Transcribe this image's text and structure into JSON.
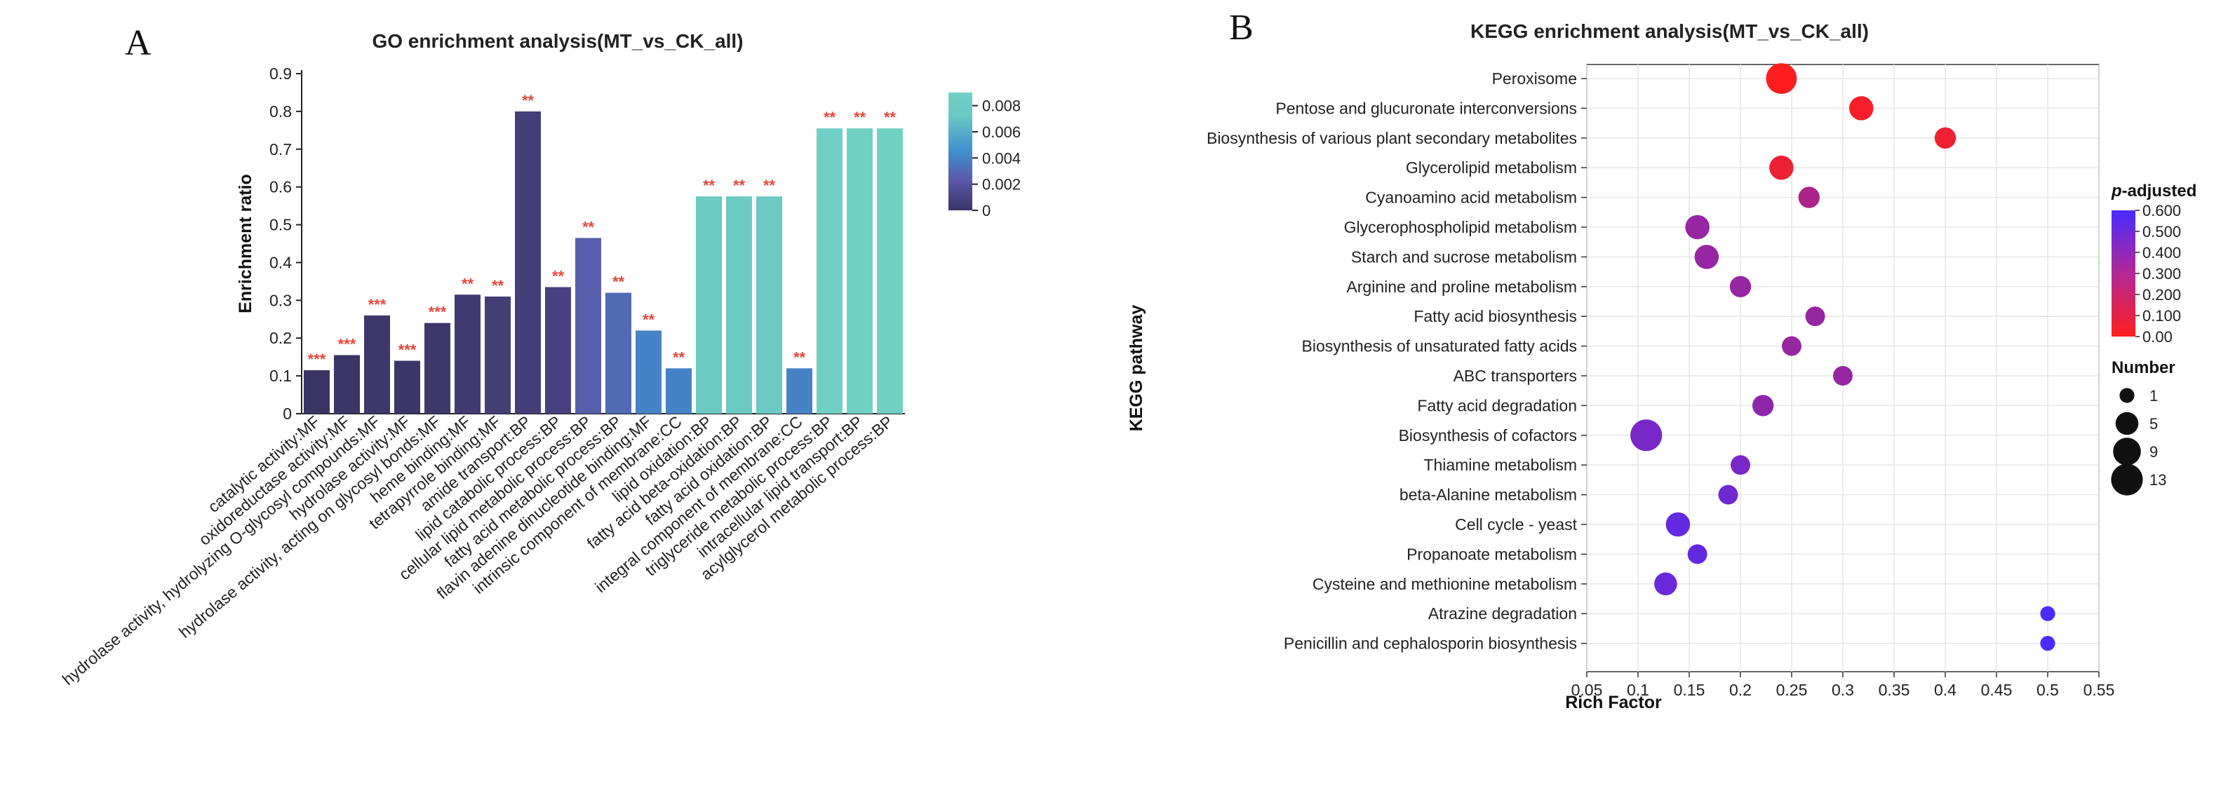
{
  "panels": {
    "a": "A",
    "b": "B"
  },
  "chart_data": [
    {
      "type": "bar",
      "title": "GO enrichment analysis(MT_vs_CK_all)",
      "xlabel": "",
      "ylabel": "Enrichment ratio",
      "ylim": [
        0,
        0.9
      ],
      "yticks": [
        "0",
        "0.1",
        "0.2",
        "0.3",
        "0.4",
        "0.5",
        "0.6",
        "0.7",
        "0.8",
        "0.9"
      ],
      "grid": false,
      "categories": [
        "catalytic activity:MF",
        "oxidoreductase activity:MF",
        "hydrolase activity, hydrolyzing O-glycosyl compounds:MF",
        "hydrolase activity:MF",
        "hydrolase activity, acting on glycosyl bonds:MF",
        "heme binding:MF",
        "tetrapyrrole binding:MF",
        "amide transport:BP",
        "lipid catabolic process:BP",
        "cellular lipid metabolic process:BP",
        "fatty acid metabolic process:BP",
        "flavin adenine dinucleotide binding:MF",
        "intrinsic component of membrane:CC",
        "lipid oxidation:BP",
        "fatty acid beta-oxidation:BP",
        "fatty acid oxidation:BP",
        "integral component of membrane:CC",
        "triglyceride metabolic process:BP",
        "intracellular lipid transport:BP",
        "acylglycerol metabolic process:BP"
      ],
      "values": [
        0.115,
        0.155,
        0.26,
        0.14,
        0.24,
        0.315,
        0.31,
        0.8,
        0.335,
        0.465,
        0.32,
        0.22,
        0.12,
        0.575,
        0.575,
        0.575,
        0.12,
        0.755,
        0.755,
        0.755
      ],
      "significance": [
        "***",
        "***",
        "***",
        "***",
        "***",
        "**",
        "**",
        "**",
        "**",
        "**",
        "**",
        "**",
        "**",
        "**",
        "**",
        "**",
        "**",
        "**",
        "**",
        "**"
      ],
      "color_values": [
        0,
        0.0001,
        0.0002,
        0.0001,
        0.0002,
        0.0004,
        0.0006,
        0.0007,
        0.0009,
        0.0025,
        0.003,
        0.004,
        0.004,
        0.007,
        0.007,
        0.007,
        0.004,
        0.009,
        0.009,
        0.009
      ],
      "colorbar": {
        "range": [
          0,
          0.009
        ],
        "ticks": [
          "0.008",
          "0.006",
          "0.004",
          "0.002",
          "0"
        ],
        "colors": [
          "#3a3464",
          "#5a58a8",
          "#3f8fcf",
          "#6ac9c4",
          "#70d0c3"
        ]
      }
    },
    {
      "type": "scatter",
      "title": "KEGG enrichment analysis(MT_vs_CK_all)",
      "xlabel": "Rich Factor",
      "ylabel": "KEGG pathway",
      "xlim": [
        0.05,
        0.55
      ],
      "xticks": [
        "0.05",
        "0.1",
        "0.15",
        "0.2",
        "0.25",
        "0.3",
        "0.35",
        "0.4",
        "0.45",
        "0.5",
        "0.55"
      ],
      "grid": true,
      "legend_position": "right",
      "categories": [
        "Peroxisome",
        "Pentose and glucuronate interconversions",
        "Biosynthesis of various plant secondary metabolites",
        "Glycerolipid metabolism",
        "Cyanoamino acid metabolism",
        "Glycerophospholipid metabolism",
        "Starch and sucrose metabolism",
        "Arginine and proline metabolism",
        "Fatty acid biosynthesis",
        "Biosynthesis of unsaturated fatty acids",
        "ABC transporters",
        "Fatty acid degradation",
        "Biosynthesis of cofactors",
        "Thiamine metabolism",
        "beta-Alanine metabolism",
        "Cell cycle - yeast",
        "Propanoate metabolism",
        "Cysteine and methionine metabolism",
        "Atrazine degradation",
        "Penicillin and cephalosporin biosynthesis"
      ],
      "rich_factor": [
        0.24,
        0.318,
        0.4,
        0.24,
        0.267,
        0.158,
        0.167,
        0.2,
        0.273,
        0.25,
        0.3,
        0.222,
        0.108,
        0.2,
        0.188,
        0.139,
        0.158,
        0.127,
        0.5,
        0.5
      ],
      "number": [
        12,
        6,
        4,
        6,
        4,
        6,
        6,
        4,
        3,
        3,
        3,
        4,
        13,
        3,
        3,
        6,
        3,
        5,
        1,
        1
      ],
      "p_adjusted": [
        0.0,
        0.03,
        0.05,
        0.06,
        0.28,
        0.35,
        0.35,
        0.35,
        0.35,
        0.35,
        0.35,
        0.38,
        0.45,
        0.45,
        0.48,
        0.52,
        0.52,
        0.5,
        0.62,
        0.62
      ],
      "color_legend": {
        "title_italic": "p",
        "title_rest": "-adjusted",
        "ticks": [
          "0.600",
          "0.500",
          "0.400",
          "0.300",
          "0.200",
          "0.100",
          "0.00"
        ],
        "range": [
          0,
          0.6
        ],
        "colors": [
          "#ff1e1e",
          "#4b2bff"
        ]
      },
      "size_legend": {
        "title": "Number",
        "values": [
          1,
          5,
          9,
          13
        ],
        "labels": [
          "1",
          "5",
          "9",
          "13"
        ]
      }
    }
  ]
}
